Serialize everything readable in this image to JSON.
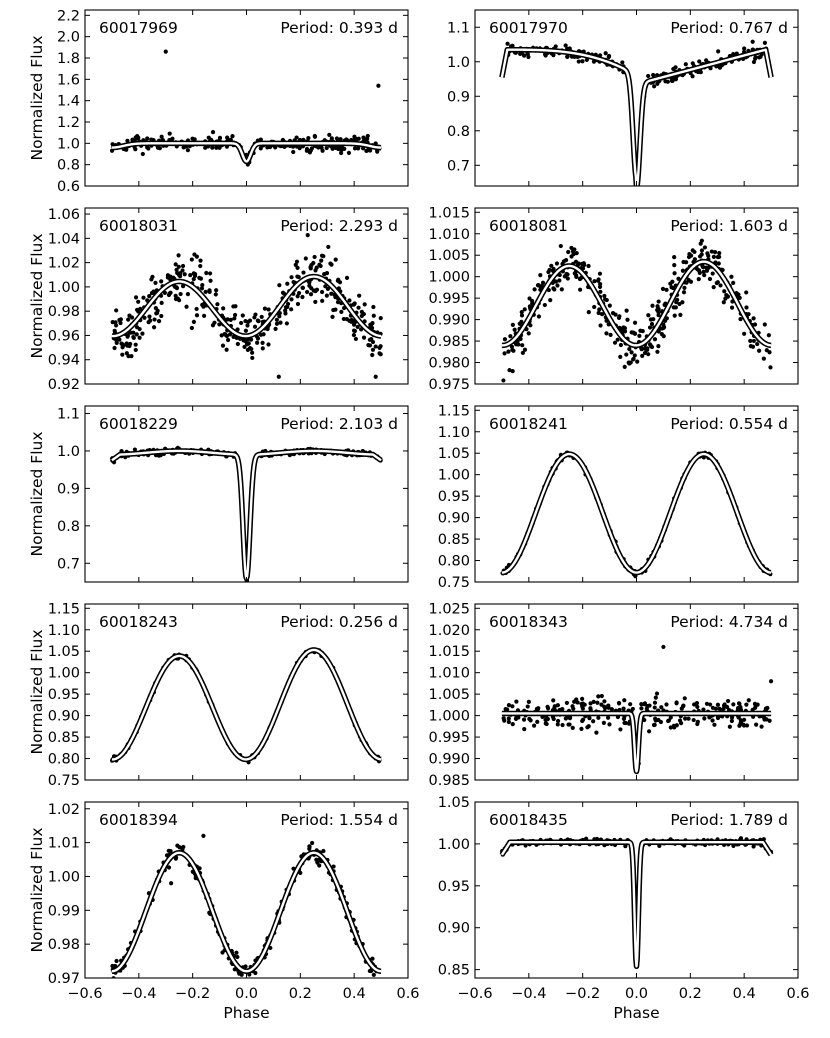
{
  "figure": {
    "ylabel": "Normalized Flux",
    "xlabel": "Phase",
    "x_ticks": [
      "−0.6",
      "−0.4",
      "−0.2",
      "0.0",
      "0.2",
      "0.4",
      "0.6"
    ]
  },
  "colors": {
    "points": "#000000",
    "model_outline": "#000000",
    "model_fill": "#ffffff",
    "axes": "#000000"
  },
  "chart_data": [
    {
      "type": "scatter",
      "id": "60017969",
      "period_label": "Period: 0.393 d",
      "period_days": 0.393,
      "xlim": [
        -0.6,
        0.6
      ],
      "ylim": [
        0.6,
        2.25
      ],
      "yticks": [
        0.6,
        0.8,
        1.0,
        1.2,
        1.4,
        1.6,
        1.8,
        2.0,
        2.2
      ],
      "ytick_labels": [
        "0.6",
        "0.8",
        "1.0",
        "1.2",
        "1.4",
        "1.6",
        "1.8",
        "2.0",
        "2.2"
      ],
      "model": "eb",
      "base": 1.0,
      "d1": 0.17,
      "w1": 0.022,
      "d2": 0.04,
      "w2": 0.06,
      "amp_ell": 0.0,
      "oer_shift": 0.0,
      "noise": 0.035,
      "n_points": 300,
      "outliers": [
        [
          -0.3,
          1.86
        ],
        [
          0.49,
          1.54
        ]
      ]
    },
    {
      "type": "scatter",
      "id": "60017970",
      "period_label": "Period: 0.767 d",
      "period_days": 0.767,
      "xlim": [
        -0.6,
        0.6
      ],
      "ylim": [
        0.64,
        1.15
      ],
      "yticks": [
        0.7,
        0.8,
        0.9,
        1.0,
        1.1
      ],
      "ytick_labels": [
        "0.7",
        "0.8",
        "0.9",
        "1.0",
        "1.1"
      ],
      "model": "slope",
      "noise": 0.01,
      "n_points": 260,
      "outliers": []
    },
    {
      "type": "scatter",
      "id": "60018031",
      "period_label": "Period: 2.293 d",
      "period_days": 2.293,
      "xlim": [
        -0.6,
        0.6
      ],
      "ylim": [
        0.92,
        1.065
      ],
      "yticks": [
        0.92,
        0.94,
        0.96,
        0.98,
        1.0,
        1.02,
        1.04,
        1.06
      ],
      "ytick_labels": [
        "0.92",
        "0.94",
        "0.96",
        "0.98",
        "1.00",
        "1.02",
        "1.04",
        "1.06"
      ],
      "model": "ellip",
      "base": 0.983,
      "amp": 0.0235,
      "oer": 0.002,
      "noise": 0.011,
      "n_points": 420,
      "outliers": [
        [
          0.12,
          0.926
        ],
        [
          0.48,
          0.926
        ]
      ]
    },
    {
      "type": "scatter",
      "id": "60018081",
      "period_label": "Period: 1.603 d",
      "period_days": 1.603,
      "xlim": [
        -0.6,
        0.6
      ],
      "ylim": [
        0.975,
        1.016
      ],
      "yticks": [
        0.975,
        0.98,
        0.985,
        0.99,
        0.995,
        1.0,
        1.005,
        1.01,
        1.015
      ],
      "ytick_labels": [
        "0.975",
        "0.980",
        "0.985",
        "0.990",
        "0.995",
        "1.000",
        "1.005",
        "1.010",
        "1.015"
      ],
      "model": "ellip",
      "base": 0.9935,
      "amp": 0.0095,
      "oer": 0.0005,
      "noise": 0.0028,
      "n_points": 420,
      "outliers": [
        [
          -0.46,
          0.978
        ]
      ]
    },
    {
      "type": "scatter",
      "id": "60018229",
      "period_label": "Period: 2.103 d",
      "period_days": 2.103,
      "xlim": [
        -0.6,
        0.6
      ],
      "ylim": [
        0.65,
        1.12
      ],
      "yticks": [
        0.7,
        0.8,
        0.9,
        1.0,
        1.1
      ],
      "ytick_labels": [
        "0.7",
        "0.8",
        "0.9",
        "1.0",
        "1.1"
      ],
      "model": "eb",
      "base": 1.0,
      "d1": 0.33,
      "w1": 0.018,
      "d2": 0.0,
      "w2": 0.05,
      "amp_ell": 0.02,
      "oer_shift": 0.0,
      "noise": 0.004,
      "n_points": 280,
      "outliers": []
    },
    {
      "type": "scatter",
      "id": "60018241",
      "period_label": "Period: 0.554 d",
      "period_days": 0.554,
      "xlim": [
        -0.6,
        0.6
      ],
      "ylim": [
        0.75,
        1.16
      ],
      "yticks": [
        0.75,
        0.8,
        0.85,
        0.9,
        0.95,
        1.0,
        1.05,
        1.1,
        1.15
      ],
      "ytick_labels": [
        "0.75",
        "0.80",
        "0.85",
        "0.90",
        "0.95",
        "1.00",
        "1.05",
        "1.10",
        "1.15"
      ],
      "model": "ellip",
      "base": 0.91,
      "amp": 0.138,
      "oer": 0.0,
      "noise": 0.004,
      "n_points": 320,
      "outliers": []
    },
    {
      "type": "scatter",
      "id": "60018243",
      "period_label": "Period: 0.256 d",
      "period_days": 0.256,
      "xlim": [
        -0.6,
        0.6
      ],
      "ylim": [
        0.75,
        1.16
      ],
      "yticks": [
        0.75,
        0.8,
        0.85,
        0.9,
        0.95,
        1.0,
        1.05,
        1.1,
        1.15
      ],
      "ytick_labels": [
        "0.75",
        "0.80",
        "0.85",
        "0.90",
        "0.95",
        "1.00",
        "1.05",
        "1.10",
        "1.15"
      ],
      "model": "ellip",
      "base": 0.922,
      "amp": 0.124,
      "oer": 0.007,
      "noise": 0.003,
      "n_points": 260,
      "outliers": []
    },
    {
      "type": "scatter",
      "id": "60018343",
      "period_label": "Period: 4.734 d",
      "period_days": 4.734,
      "xlim": [
        -0.6,
        0.6
      ],
      "ylim": [
        0.985,
        1.026
      ],
      "yticks": [
        0.985,
        0.99,
        0.995,
        1.0,
        1.005,
        1.01,
        1.015,
        1.02,
        1.025
      ],
      "ytick_labels": [
        "0.985",
        "0.990",
        "0.995",
        "1.000",
        "1.005",
        "1.010",
        "1.015",
        "1.020",
        "1.025"
      ],
      "model": "eb",
      "base": 1.0005,
      "d1": 0.0135,
      "w1": 0.01,
      "d2": 0.0,
      "w2": 0.05,
      "amp_ell": 0.0,
      "oer_shift": 0.0,
      "noise": 0.0018,
      "n_points": 300,
      "outliers": [
        [
          0.1,
          1.016
        ],
        [
          0.5,
          1.008
        ]
      ]
    },
    {
      "type": "scatter",
      "id": "60018394",
      "period_label": "Period: 1.554 d",
      "period_days": 1.554,
      "xlim": [
        -0.6,
        0.6
      ],
      "ylim": [
        0.97,
        1.022
      ],
      "yticks": [
        0.97,
        0.98,
        0.99,
        1.0,
        1.01,
        1.02
      ],
      "ytick_labels": [
        "0.97",
        "0.98",
        "0.99",
        "1.00",
        "1.01",
        "1.02"
      ],
      "model": "ellip",
      "base": 0.9895,
      "amp": 0.0175,
      "oer": 0.0,
      "noise": 0.0014,
      "n_points": 300,
      "outliers": [
        [
          -0.28,
          0.998
        ],
        [
          -0.16,
          1.012
        ]
      ]
    },
    {
      "type": "scatter",
      "id": "60018435",
      "period_label": "Period: 1.789 d",
      "period_days": 1.789,
      "xlim": [
        -0.6,
        0.6
      ],
      "ylim": [
        0.84,
        1.05
      ],
      "yticks": [
        0.85,
        0.9,
        0.95,
        1.0,
        1.05
      ],
      "ytick_labels": [
        "0.85",
        "0.90",
        "0.95",
        "1.00",
        "1.05"
      ],
      "model": "eb",
      "base": 1.002,
      "d1": 0.148,
      "w1": 0.01,
      "d2": 0.0,
      "w2": 0.05,
      "amp_ell": 0.0,
      "oer_shift": 0.0,
      "noise": 0.0018,
      "n_points": 260,
      "outliers": []
    }
  ]
}
